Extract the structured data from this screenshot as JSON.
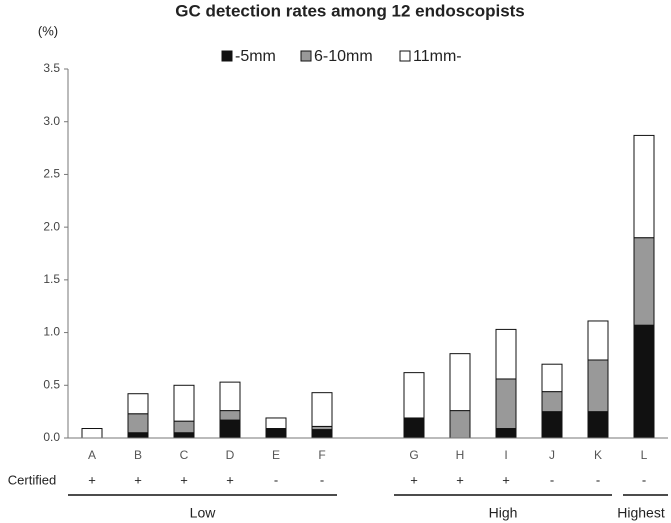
{
  "chart_data": {
    "type": "stacked_bar",
    "title": "GC detection rates among 12 endoscopists",
    "y_label": "(%)",
    "categories": [
      "A",
      "B",
      "C",
      "D",
      "E",
      "F",
      null,
      "G",
      "H",
      "I",
      "J",
      "K",
      "L"
    ],
    "series": [
      {
        "name": "-5mm",
        "color": "#111111",
        "values": [
          0,
          0.05,
          0.05,
          0.17,
          0.09,
          0.08,
          null,
          0.19,
          0,
          0.09,
          0.25,
          0.25,
          1.07
        ]
      },
      {
        "name": "6-10mm",
        "color": "#999999",
        "values": [
          0,
          0.18,
          0.11,
          0.09,
          0,
          0.03,
          null,
          0,
          0.26,
          0.47,
          0.19,
          0.49,
          0.83
        ]
      },
      {
        "name": "11mm-",
        "color": "#ffffff",
        "values": [
          0.09,
          0.19,
          0.34,
          0.27,
          0.1,
          0.32,
          null,
          0.43,
          0.54,
          0.47,
          0.26,
          0.37,
          0.97
        ]
      }
    ],
    "ylim": [
      0,
      3.5
    ],
    "yticks": [
      {
        "value": 0,
        "label": "0.0"
      },
      0.5,
      {
        "value": 1,
        "label": "1.0"
      },
      1.5,
      {
        "value": 2,
        "label": "2.0"
      },
      2.5,
      {
        "value": 3,
        "label": "3.0"
      },
      3.5
    ],
    "row_label": "Certified",
    "certified": [
      "+",
      "+",
      "+",
      "+",
      "-",
      "-",
      null,
      "+",
      "+",
      "+",
      "-",
      "-",
      "-"
    ],
    "groups": [
      "Low",
      "High",
      "Highest"
    ]
  }
}
